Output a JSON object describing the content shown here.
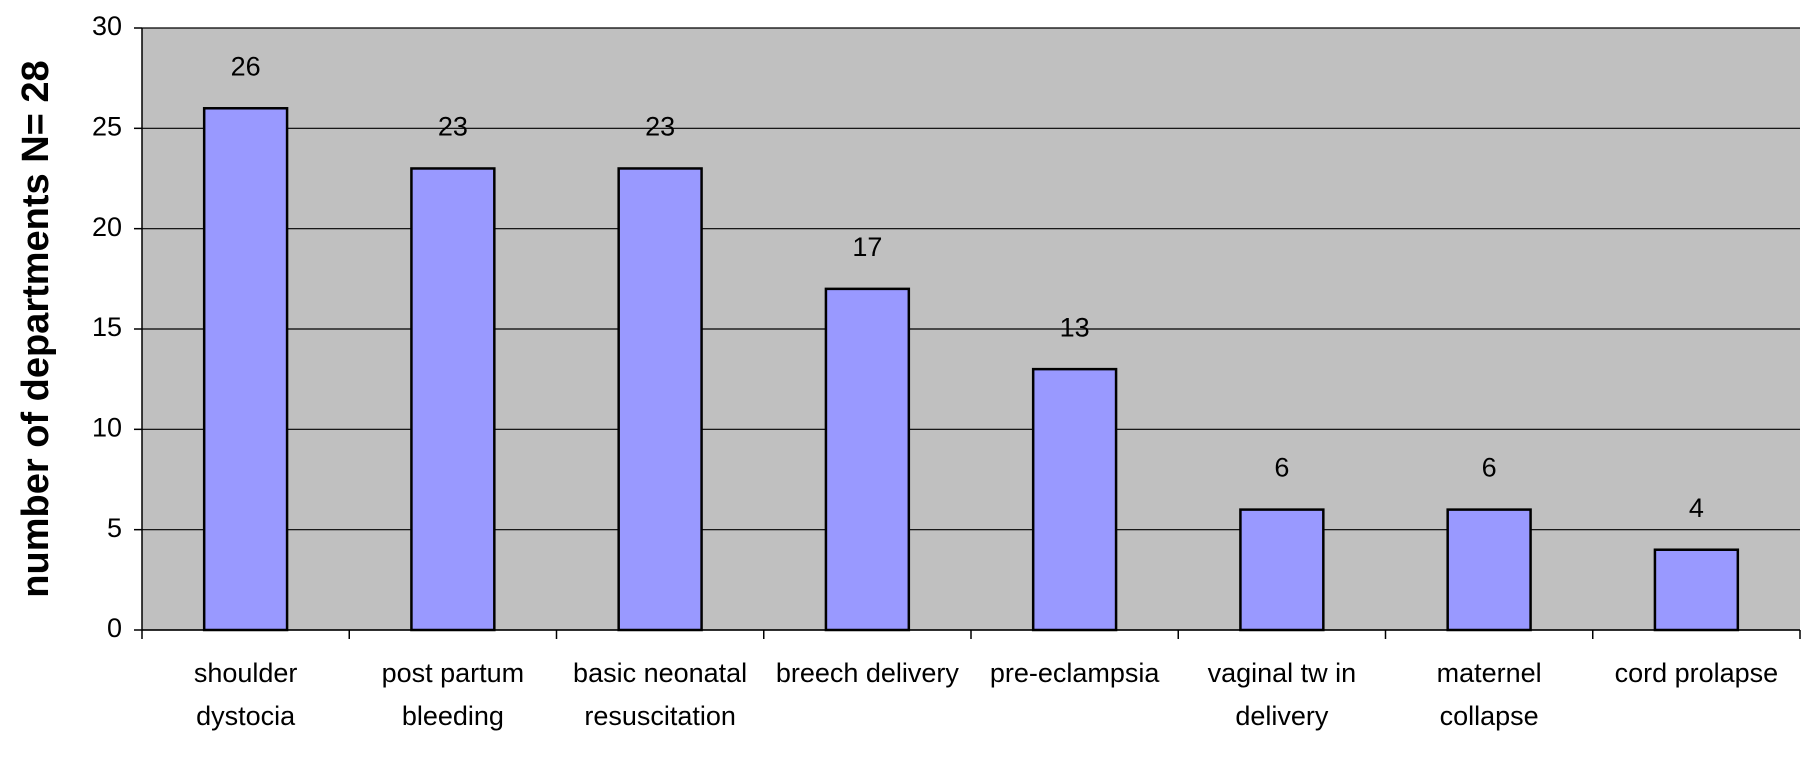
{
  "chart_data": {
    "type": "bar",
    "y_label": "number of departments N= 28",
    "categories": [
      "shoulder dystocia",
      "post partum bleeding",
      "basic neonatal resuscitation",
      "breech delivery",
      "pre-eclampsia",
      "vaginal tw in delivery",
      "maternel collapse",
      "cord prolapse"
    ],
    "values": [
      26,
      23,
      23,
      17,
      13,
      6,
      6,
      4
    ],
    "color": "#9999ff",
    "ylim": [
      0,
      30
    ],
    "yticks": [
      0,
      5,
      10,
      15,
      20,
      25,
      30
    ],
    "grid": true
  }
}
